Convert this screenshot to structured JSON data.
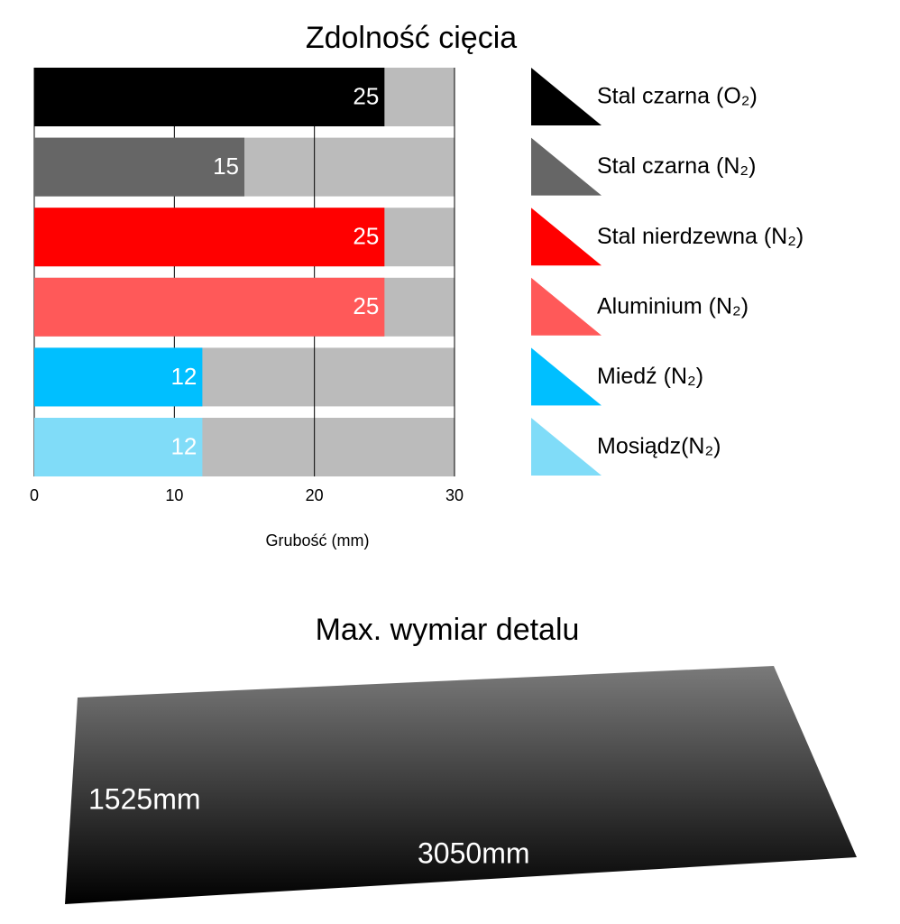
{
  "chart_data": {
    "type": "bar",
    "orientation": "horizontal",
    "title": "Zdolność cięcia",
    "x_label": "Grubość (mm)",
    "categories": [
      "Stal czarna (O₂)",
      "Stal czarna (N₂)",
      "Stal nierdzewna (N₂)",
      "Aluminium (N₂)",
      "Miedź (N₂)",
      "Mosiądz(N₂)"
    ],
    "values": [
      25,
      15,
      25,
      25,
      12,
      12
    ],
    "colors": [
      "#000000",
      "#666666",
      "#ff0000",
      "#ff5959",
      "#00bfff",
      "#80dcf8"
    ],
    "track_color": "#bbbbbb",
    "xlim": [
      0,
      30
    ],
    "xticks": [
      0,
      10,
      20,
      30
    ],
    "grid": true
  },
  "sheet": {
    "title": "Max. wymiar detalu",
    "width_label": "1525mm",
    "length_label": "3050mm"
  }
}
